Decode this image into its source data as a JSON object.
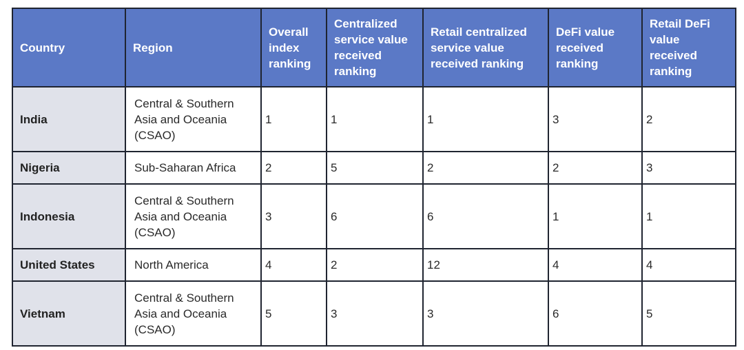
{
  "table": {
    "headers": [
      "Country",
      "Region",
      "Overall index ranking",
      "Centralized service value received ranking",
      "Retail centralized service value received ranking",
      "DeFi value received ranking",
      "Retail DeFi value received ranking"
    ],
    "rows": [
      {
        "country": "India",
        "region": "Central & Southern Asia and Oceania (CSAO)",
        "overall": "1",
        "centralized": "1",
        "retail_centralized": "1",
        "defi": "3",
        "retail_defi": "2"
      },
      {
        "country": "Nigeria",
        "region": "Sub-Saharan Africa",
        "overall": "2",
        "centralized": "5",
        "retail_centralized": "2",
        "defi": "2",
        "retail_defi": "3"
      },
      {
        "country": "Indonesia",
        "region": "Central & Southern Asia and Oceania (CSAO)",
        "overall": "3",
        "centralized": "6",
        "retail_centralized": "6",
        "defi": "1",
        "retail_defi": "1"
      },
      {
        "country": "United States",
        "region": "North America",
        "overall": "4",
        "centralized": "2",
        "retail_centralized": "12",
        "defi": "4",
        "retail_defi": "4"
      },
      {
        "country": "Vietnam",
        "region": "Central & Southern Asia and Oceania (CSAO)",
        "overall": "5",
        "centralized": "3",
        "retail_centralized": "3",
        "defi": "6",
        "retail_defi": "5"
      }
    ]
  }
}
